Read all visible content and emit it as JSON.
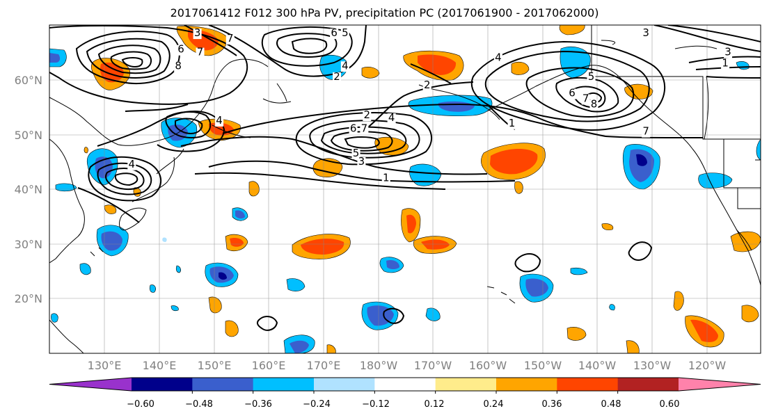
{
  "title": "2017061412 F012 300 hPa PV, precipitation PC (2017061900 - 2017062000)",
  "lat_labels": [
    "60°N",
    "50°N",
    "40°N",
    "30°N",
    "20°N"
  ],
  "lon_labels": [
    "130°E",
    "140°E",
    "150°E",
    "160°E",
    "170°E",
    "180°W",
    "170°W",
    "160°W",
    "150°W",
    "140°W",
    "130°W",
    "120°W"
  ],
  "colorbar": {
    "colors": [
      "#9932CC",
      "#00008B",
      "#3A5FCD",
      "#00BFFF",
      "#B0E2FF",
      "#FFFFFF",
      "#FFEC8B",
      "#FFA500",
      "#FF4500",
      "#B22222",
      "#FF82AB"
    ],
    "labels": [
      "−0.60",
      "−0.48",
      "−0.36",
      "−0.24",
      "−0.12",
      "0.12",
      "0.24",
      "0.36",
      "0.48",
      "0.60"
    ]
  },
  "contour_labels": [
    {
      "text": "3",
      "lon": 147,
      "lat": 68
    },
    {
      "text": "6",
      "lon": 144,
      "lat": 65
    },
    {
      "text": "7",
      "lon": 147.5,
      "lat": 64.5
    },
    {
      "text": "8",
      "lon": 143.5,
      "lat": 62
    },
    {
      "text": "7",
      "lon": 153,
      "lat": 67
    },
    {
      "text": "6",
      "lon": 172,
      "lat": 68
    },
    {
      "text": "5",
      "lon": 174,
      "lat": 68
    },
    {
      "text": "4",
      "lon": 174,
      "lat": 62
    },
    {
      "text": "2",
      "lon": 172.5,
      "lat": 60
    },
    {
      "text": "3",
      "lon": 229,
      "lat": 68
    },
    {
      "text": "4",
      "lon": 202,
      "lat": 63.5
    },
    {
      "text": "5",
      "lon": 219,
      "lat": 60
    },
    {
      "text": "6",
      "lon": 215.5,
      "lat": 57
    },
    {
      "text": "7",
      "lon": 218,
      "lat": 56
    },
    {
      "text": "8",
      "lon": 219.5,
      "lat": 55
    },
    {
      "text": "1",
      "lon": 204.5,
      "lat": 51.5
    },
    {
      "text": "7",
      "lon": 229,
      "lat": 50
    },
    {
      "text": "3",
      "lon": 244,
      "lat": 64.5
    },
    {
      "text": "1",
      "lon": 243.5,
      "lat": 62.5
    },
    {
      "text": "2",
      "lon": 189,
      "lat": 58.5
    },
    {
      "text": "2",
      "lon": 178,
      "lat": 53
    },
    {
      "text": "4",
      "lon": 182.5,
      "lat": 52.5
    },
    {
      "text": "6",
      "lon": 175.5,
      "lat": 50.5
    },
    {
      "text": "7",
      "lon": 177.5,
      "lat": 50.5
    },
    {
      "text": "5",
      "lon": 176,
      "lat": 46
    },
    {
      "text": "3",
      "lon": 177,
      "lat": 44.5
    },
    {
      "text": "1",
      "lon": 181.5,
      "lat": 41.5
    },
    {
      "text": "4",
      "lon": 151,
      "lat": 52
    },
    {
      "text": "4",
      "lon": 135,
      "lat": 44
    }
  ]
}
